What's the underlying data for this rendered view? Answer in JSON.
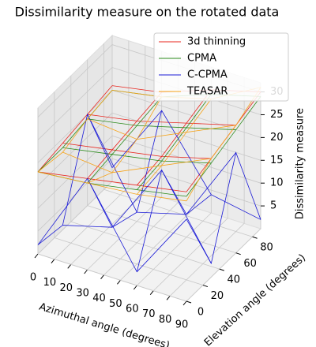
{
  "chart_data": {
    "type": "wireframe3d",
    "title": "Dissimilarity measure on the rotated data",
    "xlabel": "Azimuthal angle (degrees)",
    "ylabel": "Elevation angle (degrees)",
    "zlabel": "Dissimilarity measure",
    "x": [
      0,
      30,
      60,
      90
    ],
    "y": [
      0,
      30,
      60,
      90
    ],
    "xlim": [
      0,
      90
    ],
    "ylim": [
      0,
      90
    ],
    "zlim": [
      0,
      32
    ],
    "xticks": [
      0,
      10,
      20,
      30,
      40,
      50,
      60,
      70,
      80,
      90
    ],
    "yticks": [
      0,
      20,
      40,
      60,
      80
    ],
    "zticks": [
      5,
      10,
      15,
      20,
      25,
      30
    ],
    "grid": true,
    "legend": "upper right",
    "series": [
      {
        "name": "3d thinning",
        "color": "#e8251e",
        "values": [
          [
            18,
            20,
            22,
            24
          ],
          [
            19,
            21,
            23,
            26
          ],
          [
            20,
            22,
            25,
            28
          ],
          [
            21,
            23,
            27,
            30
          ]
        ]
      },
      {
        "name": "CPMA",
        "color": "#2a8a1a",
        "values": [
          [
            18,
            19,
            21,
            23
          ],
          [
            18,
            20,
            22,
            25
          ],
          [
            19,
            21,
            24,
            27
          ],
          [
            20,
            22,
            26,
            29
          ]
        ]
      },
      {
        "name": "C-CPMA",
        "color": "#1a1ad6",
        "values": [
          [
            2,
            20,
            3,
            18
          ],
          [
            1,
            4,
            20,
            3
          ],
          [
            20,
            2,
            5,
            22
          ],
          [
            3,
            19,
            4,
            2
          ]
        ]
      },
      {
        "name": "TEASAR",
        "color": "#f5a31a",
        "values": [
          [
            18,
            19,
            20,
            22
          ],
          [
            17,
            16,
            21,
            26
          ],
          [
            19,
            18,
            23,
            28
          ],
          [
            20,
            22,
            25,
            31
          ]
        ]
      }
    ]
  }
}
